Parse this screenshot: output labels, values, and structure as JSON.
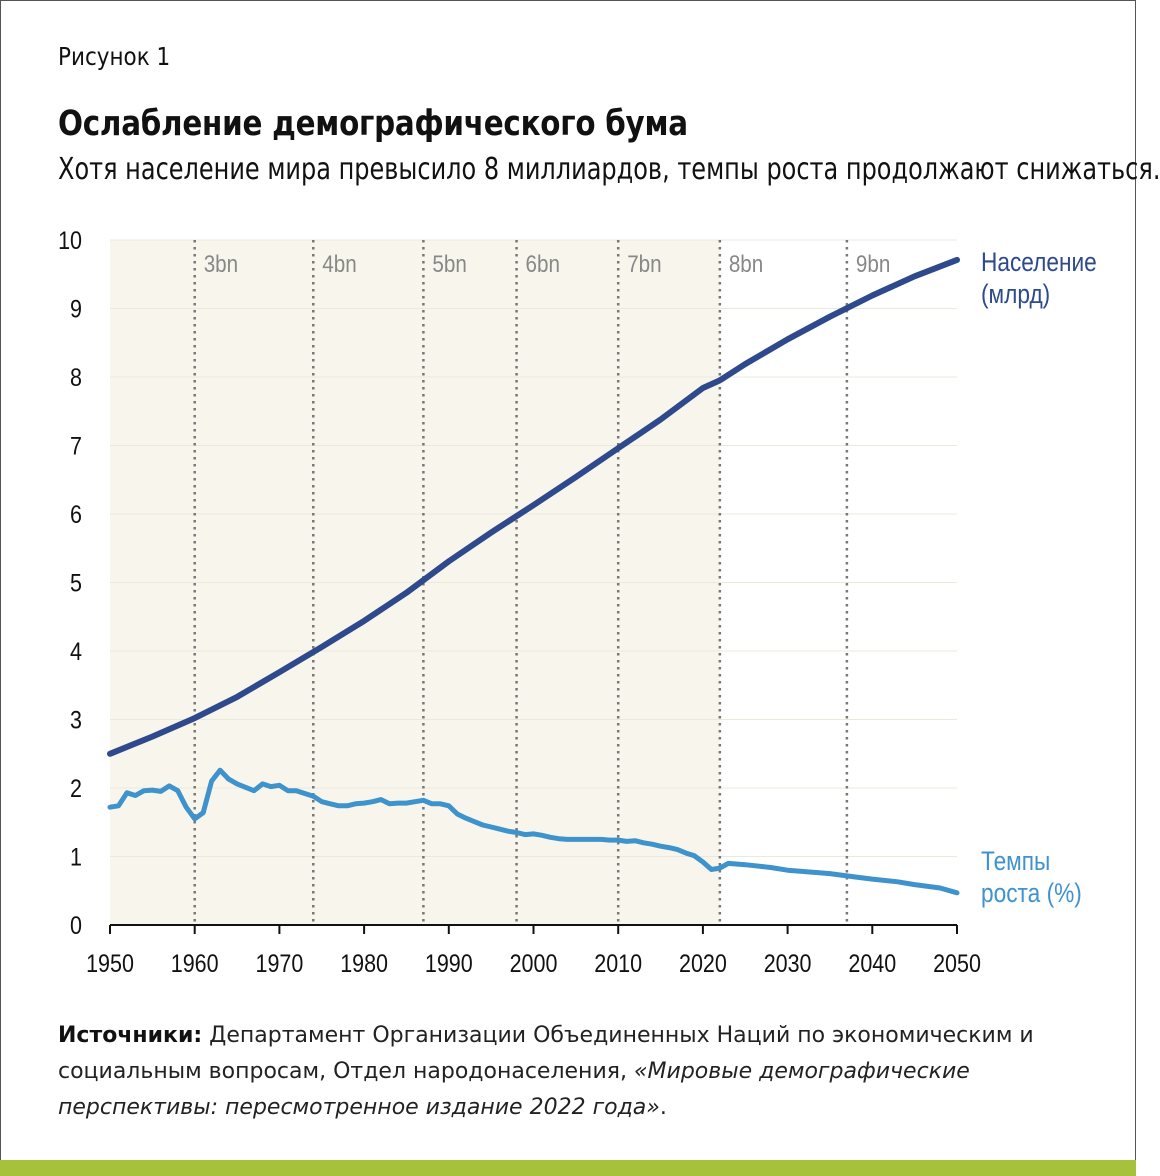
{
  "figure_label": "Рисунок 1",
  "title": "Ослабление демографического бума",
  "subtitle": "Хотя население мира превысило 8 миллиардов, темпы роста продолжают снижаться.",
  "source": {
    "label": "Источники:",
    "text": " Департамент Организации Объединенных Наций по экономическим и социальным вопросам, Отдел народонаселения, ",
    "italic": "«Мировые демографические перспективы: пересмотренное издание 2022 года»",
    "end": "."
  },
  "colors": {
    "population": "#2e4a8c",
    "growth": "#3f93cc",
    "shade": "#f8f6ec",
    "grid": "#ebe9dc",
    "milestone": "#777777",
    "milestone_text": "#888888",
    "accent_bar": "#a6c23a"
  },
  "chart_data": {
    "type": "line",
    "xlim": [
      1950,
      2050
    ],
    "ylim": [
      0,
      10
    ],
    "x_ticks": [
      "1950",
      "1960",
      "1970",
      "1980",
      "1990",
      "2000",
      "2010",
      "2020",
      "2030",
      "2040",
      "2050"
    ],
    "y_ticks": [
      "0",
      "1",
      "2",
      "3",
      "4",
      "5",
      "6",
      "7",
      "8",
      "9",
      "10"
    ],
    "shaded_until": 2022,
    "grid": true,
    "milestones": [
      {
        "label": "3bn",
        "year": 1960
      },
      {
        "label": "4bn",
        "year": 1974
      },
      {
        "label": "5bn",
        "year": 1987
      },
      {
        "label": "6bn",
        "year": 1998
      },
      {
        "label": "7bn",
        "year": 2010
      },
      {
        "label": "8bn",
        "year": 2022
      },
      {
        "label": "9bn",
        "year": 2037
      }
    ],
    "series": [
      {
        "name": "Население (млрд)",
        "label_lines": [
          "Население",
          "(млрд)"
        ],
        "x": [
          1950,
          1955,
          1960,
          1965,
          1970,
          1975,
          1980,
          1985,
          1990,
          1995,
          2000,
          2005,
          2010,
          2015,
          2020,
          2022,
          2025,
          2030,
          2035,
          2040,
          2045,
          2050
        ],
        "values": [
          2.5,
          2.75,
          3.02,
          3.33,
          3.69,
          4.06,
          4.44,
          4.85,
          5.31,
          5.73,
          6.13,
          6.54,
          6.96,
          7.38,
          7.84,
          7.95,
          8.19,
          8.55,
          8.88,
          9.19,
          9.47,
          9.71
        ]
      },
      {
        "name": "Темпы роста (%)",
        "label_lines": [
          "Темпы",
          "роста (%)"
        ],
        "x": [
          1950,
          1951,
          1952,
          1953,
          1954,
          1955,
          1956,
          1957,
          1958,
          1959,
          1960,
          1961,
          1962,
          1963,
          1964,
          1965,
          1966,
          1967,
          1968,
          1969,
          1970,
          1971,
          1972,
          1973,
          1974,
          1975,
          1976,
          1977,
          1978,
          1979,
          1980,
          1981,
          1982,
          1983,
          1984,
          1985,
          1986,
          1987,
          1988,
          1989,
          1990,
          1991,
          1992,
          1993,
          1994,
          1995,
          1996,
          1997,
          1998,
          1999,
          2000,
          2001,
          2002,
          2003,
          2004,
          2005,
          2006,
          2007,
          2008,
          2009,
          2010,
          2011,
          2012,
          2013,
          2014,
          2015,
          2016,
          2017,
          2018,
          2019,
          2020,
          2021,
          2022,
          2023,
          2025,
          2028,
          2030,
          2033,
          2035,
          2038,
          2040,
          2043,
          2045,
          2048,
          2050
        ],
        "values": [
          1.72,
          1.74,
          1.93,
          1.89,
          1.96,
          1.97,
          1.95,
          2.03,
          1.96,
          1.72,
          1.55,
          1.64,
          2.1,
          2.26,
          2.13,
          2.06,
          2.01,
          1.96,
          2.06,
          2.02,
          2.04,
          1.96,
          1.96,
          1.92,
          1.88,
          1.8,
          1.77,
          1.74,
          1.74,
          1.77,
          1.78,
          1.8,
          1.83,
          1.77,
          1.78,
          1.78,
          1.8,
          1.82,
          1.77,
          1.77,
          1.74,
          1.62,
          1.56,
          1.51,
          1.46,
          1.43,
          1.4,
          1.37,
          1.35,
          1.32,
          1.33,
          1.31,
          1.28,
          1.26,
          1.25,
          1.25,
          1.25,
          1.25,
          1.25,
          1.24,
          1.24,
          1.22,
          1.23,
          1.2,
          1.18,
          1.15,
          1.13,
          1.1,
          1.05,
          1.01,
          0.92,
          0.81,
          0.83,
          0.9,
          0.88,
          0.84,
          0.8,
          0.77,
          0.75,
          0.7,
          0.67,
          0.63,
          0.59,
          0.54,
          0.47
        ]
      }
    ]
  }
}
